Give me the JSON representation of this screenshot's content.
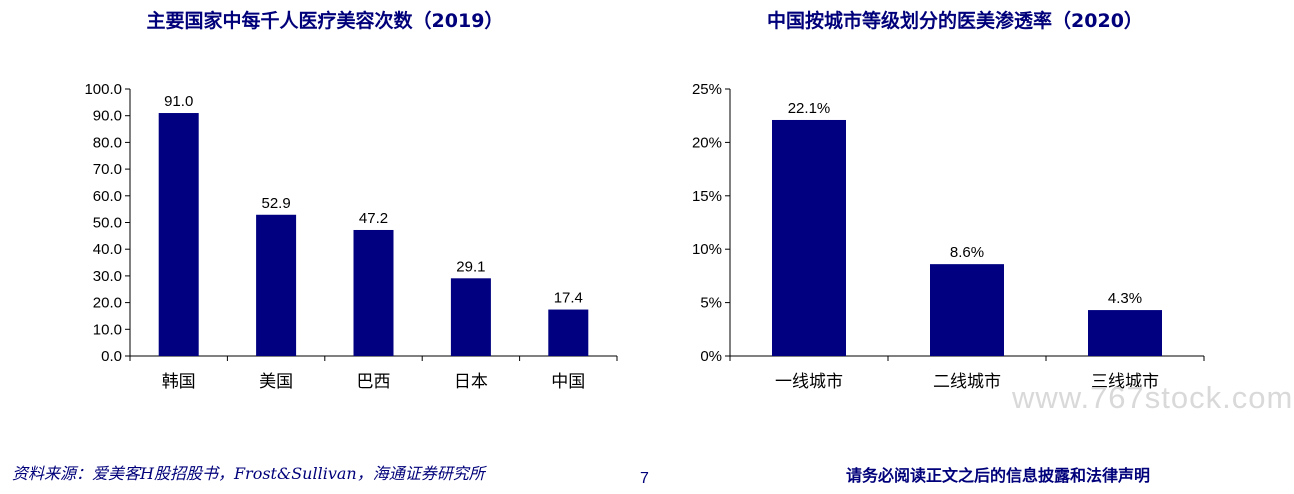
{
  "chart_data": [
    {
      "type": "bar",
      "title": "主要国家中每千人医疗美容次数（2019）",
      "categories": [
        "韩国",
        "美国",
        "巴西",
        "日本",
        "中国"
      ],
      "values": [
        91.0,
        52.9,
        47.2,
        29.1,
        17.4
      ],
      "data_labels": [
        "91.0",
        "52.9",
        "47.2",
        "29.1",
        "17.4"
      ],
      "ylim": [
        0,
        100
      ],
      "yticks": [
        0,
        10,
        20,
        30,
        40,
        50,
        60,
        70,
        80,
        90,
        100
      ],
      "ytick_labels": [
        "0.0",
        "10.0",
        "20.0",
        "30.0",
        "40.0",
        "50.0",
        "60.0",
        "70.0",
        "80.0",
        "90.0",
        "100.0"
      ],
      "grid": false,
      "bar_color": "#000080"
    },
    {
      "type": "bar",
      "title": "中国按城市等级划分的医美渗透率（2020）",
      "categories": [
        "一线城市",
        "二线城市",
        "三线城市"
      ],
      "values": [
        22.1,
        8.6,
        4.3
      ],
      "data_labels": [
        "22.1%",
        "8.6%",
        "4.3%"
      ],
      "ylim": [
        0,
        25
      ],
      "yticks": [
        0,
        5,
        10,
        15,
        20,
        25
      ],
      "ytick_labels": [
        "0%",
        "5%",
        "10%",
        "15%",
        "20%",
        "25%"
      ],
      "grid": false,
      "bar_color": "#000080"
    }
  ],
  "footer": {
    "source": "资料来源：爱美客H股招股书，Frost&Sullivan，海通证券研究所",
    "page_number": "7",
    "disclaimer": "请务必阅读正文之后的信息披露和法律声明"
  },
  "watermark": "www.767stock.com"
}
